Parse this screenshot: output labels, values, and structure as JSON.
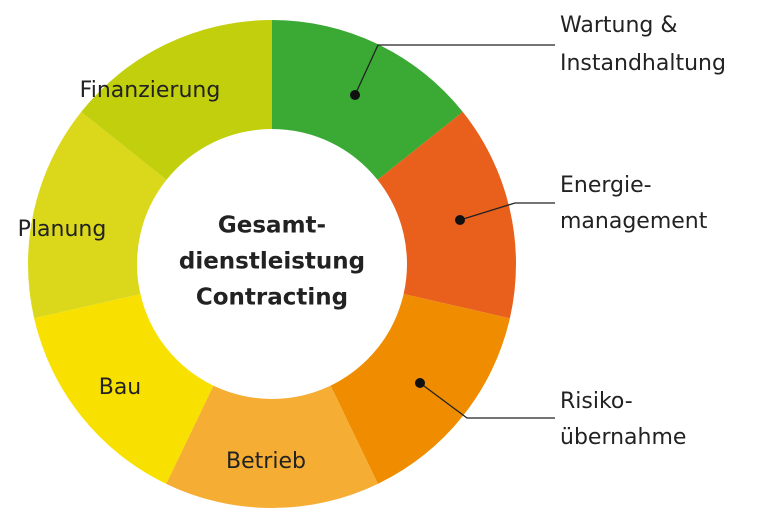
{
  "center": {
    "lines": [
      "Gesamt-",
      "dienstleistung",
      "Contracting"
    ]
  },
  "segments": [
    {
      "label": [
        "Wartung &",
        "Instandhaltung"
      ],
      "color": "#3aaa35"
    },
    {
      "label": [
        "Energie-",
        "management"
      ],
      "color": "#e8601c"
    },
    {
      "label": [
        "Risiko-",
        "übernahme"
      ],
      "color": "#f08c00"
    },
    {
      "label": [
        "Betrieb"
      ],
      "color": "#f6ad33"
    },
    {
      "label": [
        "Bau"
      ],
      "color": "#f8e100"
    },
    {
      "label": [
        "Planung"
      ],
      "color": "#dbd81c"
    },
    {
      "label": [
        "Finanzierung"
      ],
      "color": "#c1cf0c"
    }
  ]
}
